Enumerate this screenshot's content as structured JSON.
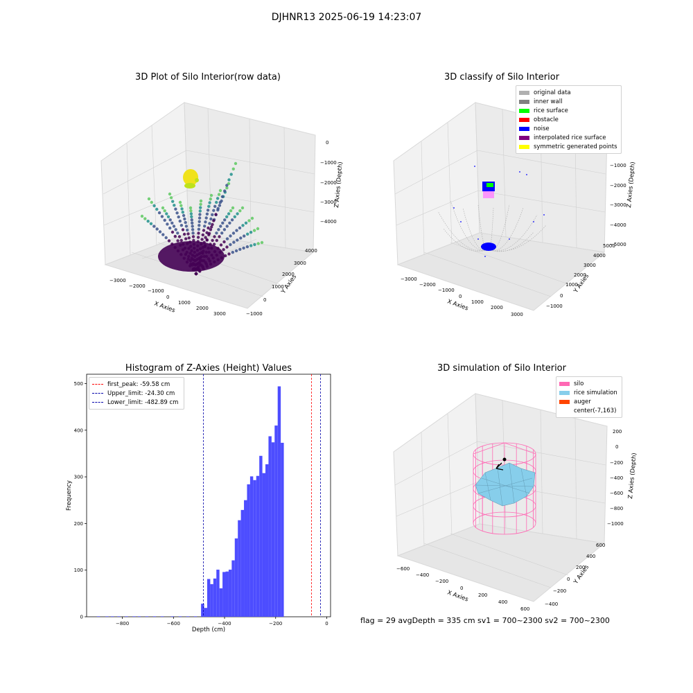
{
  "figure": {
    "suptitle": "DJHNR13 2025-06-19 14:23:07",
    "status_text": "flag = 29  avgDepth = 335 cm  sv1 = 700~2300  sv2 = 700~2300"
  },
  "chart_data": [
    {
      "type": "scatter3d",
      "title": "3D Plot of Silo Interior(row data)",
      "xlabel": "X Axies",
      "ylabel": "Y Axies",
      "zlabel": "Z Axies (Depth)",
      "xticks": [
        "−3000",
        "−2000",
        "−1000",
        "0",
        "1000",
        "2000",
        "3000"
      ],
      "yticks": [
        "−1000",
        "0",
        "1000",
        "2000",
        "3000",
        "4000"
      ],
      "zticks": [
        "0",
        "−1000",
        "−2000",
        "−3000",
        "−4000"
      ],
      "colormap": "viridis"
    },
    {
      "type": "scatter3d",
      "title": "3D classify of Silo Interior",
      "xlabel": "X Axies",
      "ylabel": "Y Axies",
      "zlabel": "Z Axies (Depth)",
      "xticks": [
        "−3000",
        "−2000",
        "−1000",
        "0",
        "1000",
        "2000",
        "3000"
      ],
      "yticks": [
        "−1000",
        "0",
        "1000",
        "2000",
        "3000",
        "4000",
        "5000"
      ],
      "zticks": [
        "−1000",
        "−2000",
        "−3000",
        "−4000",
        "−5000"
      ],
      "legend": [
        {
          "label": "original data",
          "color": "#b0b0b0"
        },
        {
          "label": "inner wall",
          "color": "#808080"
        },
        {
          "label": "rice surface",
          "color": "#00ff00"
        },
        {
          "label": "obstacle",
          "color": "#ff0000"
        },
        {
          "label": "noise",
          "color": "#0000ff"
        },
        {
          "label": "interpolated rice surface",
          "color": "#800080"
        },
        {
          "label": "symmetric generated points",
          "color": "#ffff00"
        }
      ],
      "legend_position": "top-right"
    },
    {
      "type": "bar",
      "title": "Histogram of Z-Axies (Height) Values",
      "xlabel": "Depth (cm)",
      "ylabel": "Frequency",
      "xlim": [
        -940,
        15
      ],
      "ylim": [
        0,
        520
      ],
      "xticks": [
        -800,
        -600,
        -400,
        -200,
        0
      ],
      "yticks": [
        0,
        100,
        200,
        300,
        400,
        500
      ],
      "bar_color": "#4d4dff",
      "bin_width": 12,
      "bins": [
        {
          "x": -900,
          "y": 1
        },
        {
          "x": -866,
          "y": 1
        },
        {
          "x": -845,
          "y": 1
        },
        {
          "x": -820,
          "y": 1
        },
        {
          "x": -790,
          "y": 1
        },
        {
          "x": -760,
          "y": 1
        },
        {
          "x": -740,
          "y": 1
        },
        {
          "x": -710,
          "y": 1
        },
        {
          "x": -680,
          "y": 1
        },
        {
          "x": -650,
          "y": 1
        },
        {
          "x": -610,
          "y": 1
        },
        {
          "x": -580,
          "y": 1
        },
        {
          "x": -550,
          "y": 1
        },
        {
          "x": -520,
          "y": 1
        },
        {
          "x": -492,
          "y": 28
        },
        {
          "x": -480,
          "y": 19
        },
        {
          "x": -468,
          "y": 81
        },
        {
          "x": -456,
          "y": 70
        },
        {
          "x": -444,
          "y": 82
        },
        {
          "x": -432,
          "y": 101
        },
        {
          "x": -420,
          "y": 61
        },
        {
          "x": -408,
          "y": 96
        },
        {
          "x": -396,
          "y": 97
        },
        {
          "x": -384,
          "y": 101
        },
        {
          "x": -372,
          "y": 121
        },
        {
          "x": -360,
          "y": 168
        },
        {
          "x": -348,
          "y": 207
        },
        {
          "x": -336,
          "y": 229
        },
        {
          "x": -324,
          "y": 250
        },
        {
          "x": -312,
          "y": 284
        },
        {
          "x": -300,
          "y": 301
        },
        {
          "x": -288,
          "y": 293
        },
        {
          "x": -276,
          "y": 302
        },
        {
          "x": -264,
          "y": 345
        },
        {
          "x": -252,
          "y": 308
        },
        {
          "x": -240,
          "y": 327
        },
        {
          "x": -228,
          "y": 387
        },
        {
          "x": -216,
          "y": 374
        },
        {
          "x": -204,
          "y": 410
        },
        {
          "x": -192,
          "y": 494
        },
        {
          "x": -180,
          "y": 373
        }
      ],
      "vlines": [
        {
          "label": "first_peak: -59.58 cm",
          "x": -59.58,
          "color": "#ff0000"
        },
        {
          "label": "Upper_limit: -24.30 cm",
          "x": -24.3,
          "color": "#0000aa"
        },
        {
          "label": "Lower_limit: -482.89 cm",
          "x": -482.89,
          "color": "#0000aa"
        }
      ],
      "legend_position": "top-left"
    },
    {
      "type": "surface3d",
      "title": "3D simulation of Silo Interior",
      "xlabel": "X Axies",
      "ylabel": "Y Axies",
      "zlabel": "Z Axies (Depth)",
      "xticks": [
        "−600",
        "−400",
        "−200",
        "0",
        "200",
        "400",
        "600"
      ],
      "yticks": [
        "−400",
        "−200",
        "0",
        "200",
        "400",
        "600"
      ],
      "zticks": [
        "200",
        "0",
        "−200",
        "−400",
        "−600",
        "−800",
        "−1000"
      ],
      "legend": [
        {
          "label": "silo",
          "color": "#ff69b4"
        },
        {
          "label": "rice simulation",
          "color": "#87ceeb"
        },
        {
          "label": "auger",
          "color": "#ff4500"
        },
        {
          "label": "center(-7,163)",
          "color": "transparent"
        }
      ],
      "legend_position": "top-right"
    }
  ]
}
